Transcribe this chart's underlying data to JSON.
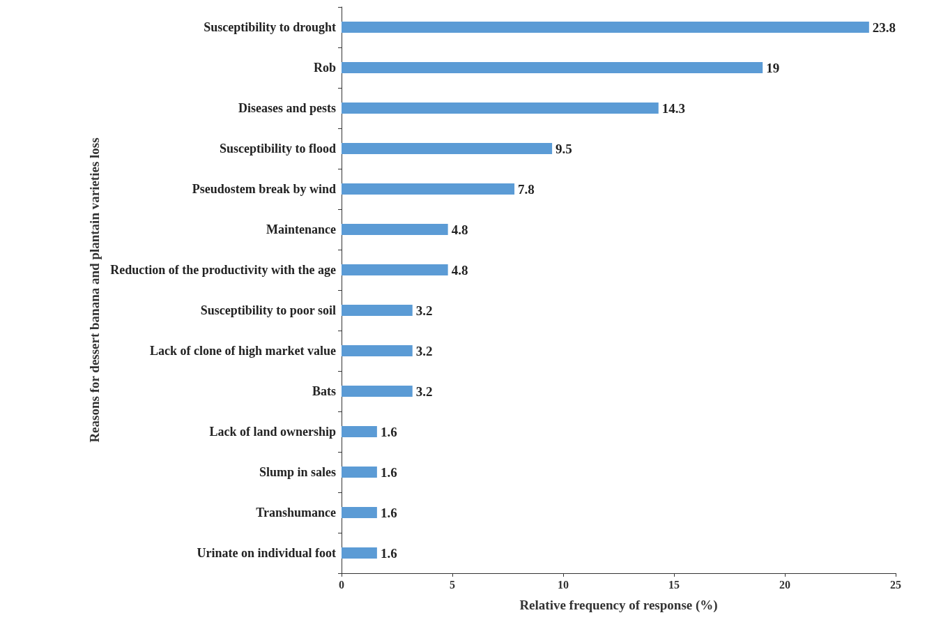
{
  "chart_data": {
    "type": "bar",
    "orientation": "horizontal",
    "xlabel": "Relative frequency of response (%)",
    "ylabel": "Reasons for dessert banana and plantain varieties loss",
    "categories": [
      "Susceptibility to drought",
      "Rob",
      "Diseases and pests",
      "Susceptibility to flood",
      "Pseudostem break by wind",
      "Maintenance",
      "Reduction of the productivity with the age",
      "Susceptibility to poor soil",
      "Lack of clone of high market value",
      "Bats",
      "Lack of land ownership",
      "Slump in sales",
      "Transhumance",
      "Urinate on individual foot"
    ],
    "values": [
      23.8,
      19,
      14.3,
      9.5,
      7.8,
      4.8,
      4.8,
      3.2,
      3.2,
      3.2,
      1.6,
      1.6,
      1.6,
      1.6
    ],
    "color": "#5b9bd5",
    "xlim": [
      0,
      25
    ],
    "xticks": [
      0,
      5,
      10,
      15,
      20,
      25
    ],
    "grid": false,
    "data_labels": true
  }
}
